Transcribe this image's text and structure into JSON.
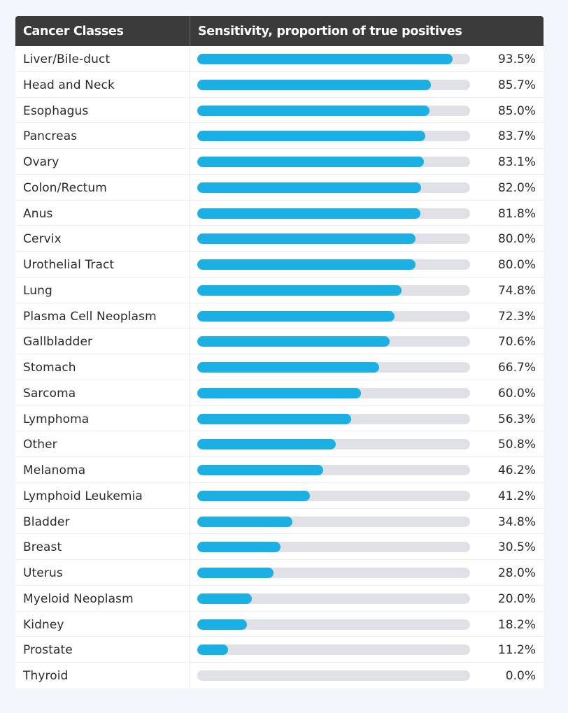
{
  "colors": {
    "page_background": "#f4f6fe",
    "header_background": "#3b3b3b",
    "bar_fill": "#1ab0e4",
    "bar_track": "#dfe1e6"
  },
  "header": {
    "col1": "Cancer Classes",
    "col2": "Sensitivity, proportion of true positives"
  },
  "chart_data": {
    "type": "bar",
    "orientation": "horizontal",
    "xlim": [
      0,
      100
    ],
    "categories": [
      "Liver/Bile-duct",
      "Head and Neck",
      "Esophagus",
      "Pancreas",
      "Ovary",
      "Colon/Rectum",
      "Anus",
      "Cervix",
      "Urothelial Tract",
      "Lung",
      "Plasma Cell Neoplasm",
      "Gallbladder",
      "Stomach",
      "Sarcoma",
      "Lymphoma",
      "Other",
      "Melanoma",
      "Lymphoid Leukemia",
      "Bladder",
      "Breast",
      "Uterus",
      "Myeloid Neoplasm",
      "Kidney",
      "Prostate",
      "Thyroid"
    ],
    "values": [
      93.5,
      85.7,
      85.0,
      83.7,
      83.1,
      82.0,
      81.8,
      80.0,
      80.0,
      74.8,
      72.3,
      70.6,
      66.7,
      60.0,
      56.3,
      50.8,
      46.2,
      41.2,
      34.8,
      30.5,
      28.0,
      20.0,
      18.2,
      11.2,
      0.0
    ],
    "value_labels": [
      "93.5%",
      "85.7%",
      "85.0%",
      "83.7%",
      "83.1%",
      "82.0%",
      "81.8%",
      "80.0%",
      "80.0%",
      "74.8%",
      "72.3%",
      "70.6%",
      "66.7%",
      "60.0%",
      "56.3%",
      "50.8%",
      "46.2%",
      "41.2%",
      "34.8%",
      "30.5%",
      "28.0%",
      "20.0%",
      "18.2%",
      "11.2%",
      "0.0%"
    ]
  }
}
